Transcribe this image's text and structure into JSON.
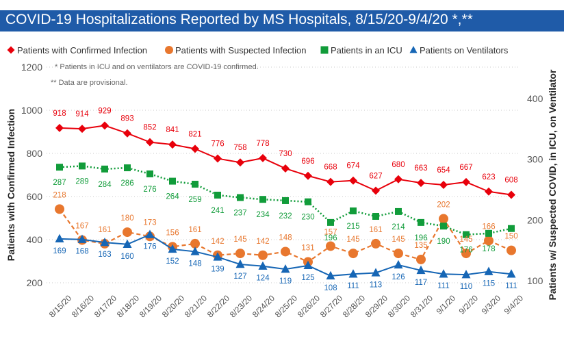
{
  "title": "COVID-19 Hospitalizations Reported by MS Hospitals, 8/15/20-9/4/20 *,**",
  "notes": [
    "* Patients in ICU and on ventilators are COVID-19 confirmed.",
    "** Data are provisional."
  ],
  "colors": {
    "title_band": "#1f5ba8",
    "confirmed": "#e8000b",
    "suspected": "#e8772e",
    "icu": "#119c3a",
    "ventilators": "#1666b5",
    "axis_text": "#555555"
  },
  "chart_data": {
    "type": "line",
    "categories": [
      "8/15/20",
      "8/16/20",
      "8/17/20",
      "8/18/20",
      "8/19/20",
      "8/20/20",
      "8/21/20",
      "8/22/20",
      "8/23/20",
      "8/24/20",
      "8/25/20",
      "8/26/20",
      "8/27/20",
      "8/28/20",
      "8/29/20",
      "8/30/20",
      "8/31/20",
      "9/1/20",
      "9/2/20",
      "9/3/20",
      "9/4/20"
    ],
    "ylabel": "Patients with Confirmed Infection",
    "y2label": "Patients w/ Suspected COVID, in ICU, on Ventilator",
    "ylim": [
      200,
      1200
    ],
    "y_ticks": [
      200,
      400,
      600,
      800,
      1000,
      1200
    ],
    "y2lim": [
      100,
      400
    ],
    "y2_ticks": [
      100,
      200,
      300,
      400
    ],
    "grid": "horizontal dotted",
    "legend_position": "top",
    "series": [
      {
        "name": "Patients with Confirmed Infection",
        "axis": "left",
        "marker": "diamond",
        "line": "solid",
        "color_key": "confirmed",
        "values": [
          918,
          914,
          929,
          893,
          852,
          841,
          821,
          776,
          758,
          778,
          730,
          696,
          668,
          674,
          627,
          680,
          663,
          654,
          667,
          623,
          608
        ]
      },
      {
        "name": "Patients with Suspected Infection",
        "axis": "right",
        "marker": "circle",
        "line": "dashed",
        "color_key": "suspected",
        "values": [
          218,
          167,
          161,
          180,
          173,
          156,
          161,
          142,
          145,
          142,
          148,
          131,
          157,
          145,
          161,
          145,
          135,
          202,
          145,
          166,
          150
        ]
      },
      {
        "name": "Patients in an ICU",
        "axis": "right",
        "marker": "square",
        "line": "dotted",
        "color_key": "icu",
        "values": [
          287,
          289,
          284,
          286,
          276,
          264,
          259,
          241,
          237,
          234,
          232,
          230,
          196,
          215,
          206,
          214,
          196,
          190,
          176,
          178,
          186
        ]
      },
      {
        "name": "Patients on Ventilators",
        "axis": "right",
        "marker": "triangle",
        "line": "solid",
        "color_key": "ventilators",
        "values": [
          169,
          168,
          163,
          160,
          176,
          152,
          148,
          139,
          127,
          124,
          119,
          125,
          108,
          111,
          113,
          126,
          117,
          111,
          110,
          115,
          111
        ]
      }
    ],
    "data_label_series": [
      "Patients with Confirmed Infection",
      "Patients in an ICU",
      "Patients on Ventilators"
    ],
    "data_labels": {
      "Patients with Suspected Infection": [
        "218",
        "167",
        "161",
        "180",
        "173",
        "156",
        "161",
        "142",
        "145",
        "142",
        "148",
        "131",
        "157",
        "145",
        "161",
        "145",
        "135",
        "202",
        "145",
        "166",
        "150"
      ],
      "Patients in an ICU": [
        "287",
        "289",
        "284",
        "286",
        "276",
        "264",
        "259",
        "241",
        "237",
        "234",
        "232",
        "230",
        "196",
        "215",
        "",
        "214",
        "196",
        "190",
        "176",
        "178",
        ""
      ]
    }
  }
}
